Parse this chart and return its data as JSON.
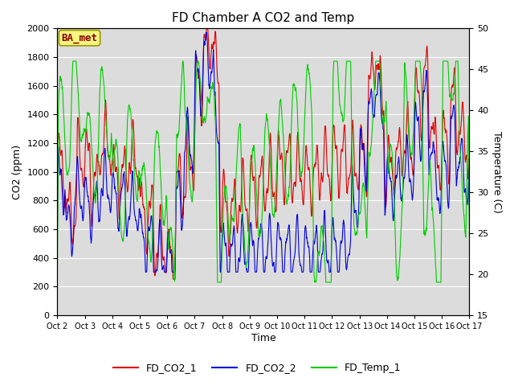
{
  "title": "FD Chamber A CO2 and Temp",
  "xlabel": "Time",
  "ylabel_left": "CO2 (ppm)",
  "ylabel_right": "Temperature (C)",
  "annotation": "BA_met",
  "ylim_left": [
    0,
    2000
  ],
  "ylim_right": [
    15,
    50
  ],
  "xtick_labels": [
    "Oct 2",
    "Oct 3",
    "Oct 4",
    "Oct 5",
    "Oct 6",
    "Oct 7",
    "Oct 8",
    "Oct 9",
    "Oct 10",
    "Oct 11",
    "Oct 12",
    "Oct 13",
    "Oct 14",
    "Oct 15",
    "Oct 16",
    "Oct 17"
  ],
  "legend_labels": [
    "FD_CO2_1",
    "FD_CO2_2",
    "FD_Temp_1"
  ],
  "line_colors": [
    "#dd0000",
    "#0000dd",
    "#00cc00"
  ],
  "bg_color": "#dcdcdc",
  "fig_bg": "#ffffff",
  "grid_color": "#ffffff",
  "annotation_fg": "#8b0000",
  "annotation_bg": "#f5f580",
  "annotation_edge": "#999900",
  "n_points": 2000,
  "seed": 7
}
